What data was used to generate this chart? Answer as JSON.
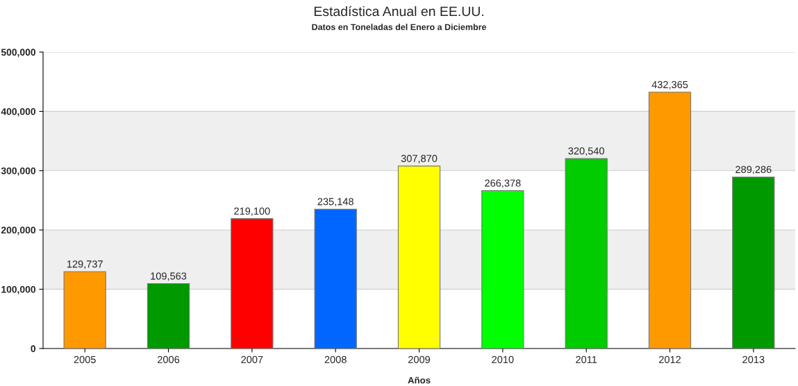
{
  "chart_data": {
    "type": "bar",
    "title": "Estadística Anual en EE.UU.",
    "subtitle": "Datos en Toneladas del Enero a Diciembre",
    "xlabel": "Años",
    "categories": [
      "2005",
      "2006",
      "2007",
      "2008",
      "2009",
      "2010",
      "2011",
      "2012",
      "2013"
    ],
    "values": [
      129737,
      109563,
      219100,
      235148,
      307870,
      266378,
      320540,
      432365,
      289286
    ],
    "colors": [
      "#ff9900",
      "#009900",
      "#ff0000",
      "#0066ff",
      "#ffff00",
      "#00ff00",
      "#00cc00",
      "#ff9900",
      "#009900"
    ],
    "value_labels": [
      "129,737",
      "109,563",
      "219,100",
      "235,148",
      "307,870",
      "266,378",
      "320,540",
      "432,365",
      "289,286"
    ],
    "ylim": [
      0,
      500000
    ],
    "yticks": [
      {
        "value": 0,
        "label": "0"
      },
      {
        "value": 100000,
        "label": "100,000"
      },
      {
        "value": 200000,
        "label": "200,000"
      },
      {
        "value": 300000,
        "label": "300,000"
      },
      {
        "value": 400000,
        "label": "400,000"
      },
      {
        "value": 500000,
        "label": "500,000"
      }
    ],
    "bands": [
      {
        "axis": "y",
        "from": 100000,
        "to": 200000,
        "color": "#efefef"
      },
      {
        "axis": "y",
        "from": 300000,
        "to": 400000,
        "color": "#efefef"
      }
    ],
    "grid": "y",
    "legend": false
  }
}
